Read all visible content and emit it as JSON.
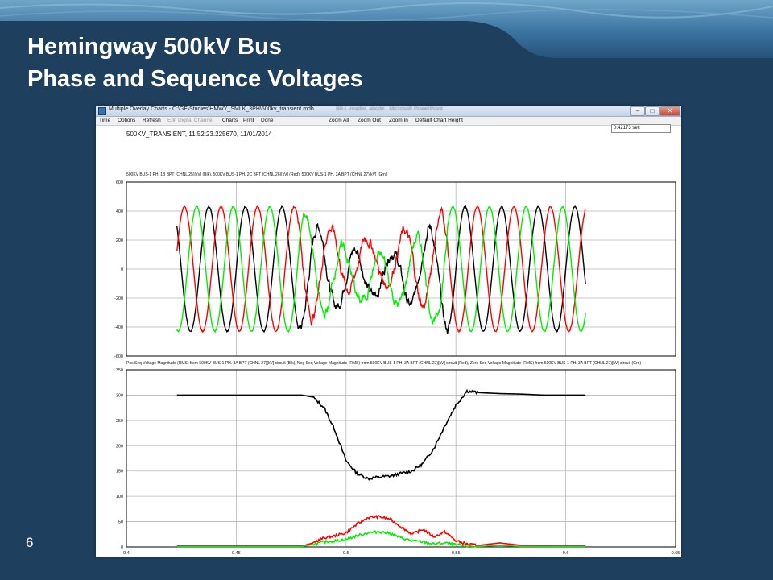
{
  "slide": {
    "title_line1": "Hemingway 500kV Bus",
    "title_line2": "Phase and Sequence Voltages",
    "page_number": "6"
  },
  "window": {
    "title": "Multiple Overlay Charts - C:\\GE\\Studies\\HMWY_SMLK_3PH\\500kv_transient.mdb",
    "background_title": "IRI-L-reader, abode...Microsoft PowerPoint",
    "buttons": {
      "minimize": "–",
      "maximize": "□",
      "close": "✕"
    }
  },
  "menu": [
    {
      "label": "Time",
      "enabled": true
    },
    {
      "label": "Options",
      "enabled": true
    },
    {
      "label": "Refresh",
      "enabled": true
    },
    {
      "label": "Edit Digital Channel",
      "enabled": false
    },
    {
      "label": "Charts",
      "enabled": true
    },
    {
      "label": "Print",
      "enabled": true
    },
    {
      "label": "Done",
      "enabled": true
    },
    {
      "label": "Zoom All",
      "enabled": true
    },
    {
      "label": "Zoom Out",
      "enabled": true
    },
    {
      "label": "Zoom In",
      "enabled": true
    },
    {
      "label": "Default Chart Height",
      "enabled": true
    }
  ],
  "header": {
    "event_label": "500KV_TRANSIENT, 11:52:23.225670, 11/01/2014",
    "cursor_time": "0.42173 sec"
  },
  "colors": {
    "blk": "#000000",
    "red": "#ff0000",
    "grn": "#00ee00"
  },
  "chart_data": [
    {
      "type": "line",
      "title": "500KV BUS-1 PH. 1B BPT (CHNL 25)[kV] (Blk), 500KV BUS-1 PH. 2C BPT (CHNL 26)[kV] (Red), 500KV BUS-1 PH. 3A BPT (CHNL 27)[kV] (Grn)",
      "ylim": [
        -600,
        600
      ],
      "yticks": [
        "600",
        "400",
        "200",
        "0",
        "-200",
        "-400",
        "-600"
      ],
      "xlim": [
        0.4,
        0.65
      ],
      "grid": true,
      "legend": "none",
      "frequency_hz": 60,
      "time_range": [
        0.423,
        0.609
      ],
      "fault_interval": [
        0.478,
        0.547
      ],
      "series": [
        {
          "color": "blk",
          "prefault_peak": 430,
          "postfault_peak": 430,
          "phase_deg": 0
        },
        {
          "color": "red",
          "prefault_peak": 430,
          "postfault_peak": 430,
          "phase_deg": -120
        },
        {
          "color": "grn",
          "prefault_peak": 430,
          "postfault_peak": 430,
          "phase_deg": 120
        }
      ]
    },
    {
      "type": "line",
      "title": "Pos Seq Voltage Magnitude (RMS) from 500KV BUS-1 PH. 3A BPT (CHNL 27)[kV] circuit (Blk), Neg Seq Voltage Magnitude (RMS) from 500KV BUS-1 PH. 3A BPT (CHNL 27)[kV] circuit (Red), Zero Seq Voltage Magnitude (RMS) from 500KV BUS-1 PH. 3A BPT (CHNL 27)[kV] circuit (Grn)",
      "ylim": [
        0,
        350
      ],
      "yticks": [
        "350",
        "300",
        "250",
        "200",
        "150",
        "100",
        "50",
        "0"
      ],
      "xlim": [
        0.4,
        0.65
      ],
      "xticks": [
        "0.4",
        "0.45",
        "0.5",
        "0.55",
        "0.6",
        "0.65"
      ],
      "grid": true,
      "legend": "none",
      "series": [
        {
          "color": "blk",
          "x": [
            0.423,
            0.48,
            0.485,
            0.49,
            0.495,
            0.5,
            0.505,
            0.51,
            0.515,
            0.52,
            0.525,
            0.53,
            0.535,
            0.54,
            0.545,
            0.55,
            0.555,
            0.56,
            0.57,
            0.58,
            0.59,
            0.609
          ],
          "y": [
            300,
            300,
            296,
            275,
            230,
            170,
            145,
            135,
            138,
            140,
            145,
            150,
            165,
            195,
            240,
            280,
            308,
            305,
            303,
            302,
            300,
            300
          ]
        },
        {
          "color": "red",
          "x": [
            0.423,
            0.48,
            0.485,
            0.49,
            0.495,
            0.5,
            0.505,
            0.51,
            0.515,
            0.52,
            0.525,
            0.53,
            0.535,
            0.54,
            0.545,
            0.55,
            0.555,
            0.56,
            0.57,
            0.58,
            0.59,
            0.609
          ],
          "y": [
            2,
            2,
            8,
            18,
            22,
            28,
            45,
            58,
            60,
            55,
            40,
            25,
            35,
            20,
            30,
            12,
            6,
            3,
            8,
            3,
            2,
            2
          ]
        },
        {
          "color": "grn",
          "x": [
            0.423,
            0.48,
            0.485,
            0.49,
            0.495,
            0.5,
            0.505,
            0.51,
            0.515,
            0.52,
            0.525,
            0.53,
            0.535,
            0.54,
            0.545,
            0.55,
            0.555,
            0.56,
            0.57,
            0.58,
            0.59,
            0.609
          ],
          "y": [
            1,
            1,
            5,
            10,
            12,
            15,
            22,
            28,
            30,
            27,
            18,
            12,
            10,
            6,
            8,
            4,
            2,
            1,
            3,
            1,
            1,
            1
          ]
        }
      ]
    }
  ]
}
